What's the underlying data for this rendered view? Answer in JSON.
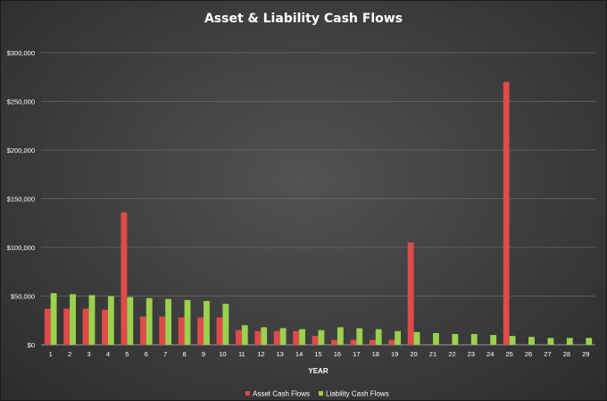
{
  "chart_data": {
    "type": "bar",
    "title": "Asset & Liability Cash Flows",
    "xlabel": "YEAR",
    "ylabel": "",
    "ylim": [
      0,
      300000
    ],
    "yticks": [
      "$0",
      "$50,000",
      "$100,000",
      "$150,000",
      "$200,000",
      "$250,000",
      "$300,000"
    ],
    "ytick_values": [
      0,
      50000,
      100000,
      150000,
      200000,
      250000,
      300000
    ],
    "grid": true,
    "legend_position": "bottom",
    "categories": [
      "1",
      "2",
      "3",
      "4",
      "5",
      "6",
      "7",
      "8",
      "9",
      "10",
      "11",
      "12",
      "13",
      "14",
      "15",
      "16",
      "17",
      "18",
      "19",
      "20",
      "21",
      "22",
      "23",
      "24",
      "25",
      "26",
      "27",
      "28",
      "29"
    ],
    "series": [
      {
        "name": "Asset Cash Flows",
        "color": "#e04a48",
        "values": [
          37000,
          37000,
          37000,
          36000,
          136000,
          29000,
          29000,
          28000,
          28000,
          28000,
          15000,
          14000,
          14000,
          14000,
          9000,
          5000,
          5000,
          5000,
          5000,
          105000,
          0,
          0,
          0,
          0,
          270000,
          0,
          0,
          0,
          0
        ]
      },
      {
        "name": "Liability Cash Flows",
        "color": "#9bd14d",
        "values": [
          53000,
          52000,
          51000,
          50000,
          49000,
          48000,
          47000,
          46000,
          45000,
          42000,
          20000,
          18000,
          17000,
          16000,
          15000,
          18000,
          17000,
          16000,
          14000,
          13000,
          12000,
          11000,
          11000,
          10000,
          9000,
          8000,
          7000,
          7000,
          7000
        ]
      }
    ]
  }
}
